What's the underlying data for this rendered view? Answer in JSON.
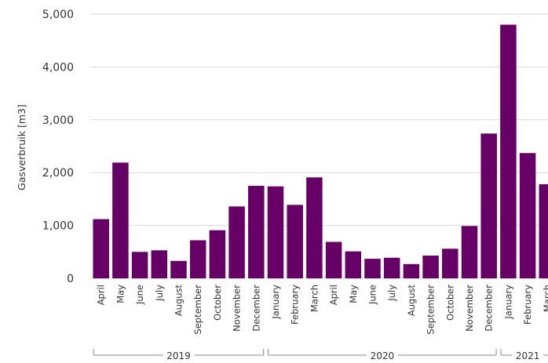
{
  "chart_data": {
    "type": "bar",
    "ylabel": "Gasverbruik [m3]",
    "ylim": [
      0,
      5000
    ],
    "yticks": [
      0,
      1000,
      2000,
      3000,
      4000,
      5000
    ],
    "grid": true,
    "color": "#660066",
    "categories": [
      "April",
      "May",
      "June",
      "July",
      "August",
      "September",
      "October",
      "November",
      "December",
      "January",
      "February",
      "March",
      "April",
      "May",
      "June",
      "July",
      "August",
      "September",
      "October",
      "November",
      "December",
      "January",
      "February",
      "March"
    ],
    "values": [
      1120,
      2190,
      500,
      530,
      330,
      720,
      910,
      1360,
      1750,
      1740,
      1390,
      1910,
      690,
      510,
      370,
      390,
      270,
      430,
      560,
      990,
      2740,
      4800,
      2370,
      1780
    ],
    "year_groups": [
      {
        "label": "2019",
        "start": 0,
        "end": 8
      },
      {
        "label": "2020",
        "start": 9,
        "end": 20
      },
      {
        "label": "2021",
        "start": 21,
        "end": 23
      }
    ]
  }
}
